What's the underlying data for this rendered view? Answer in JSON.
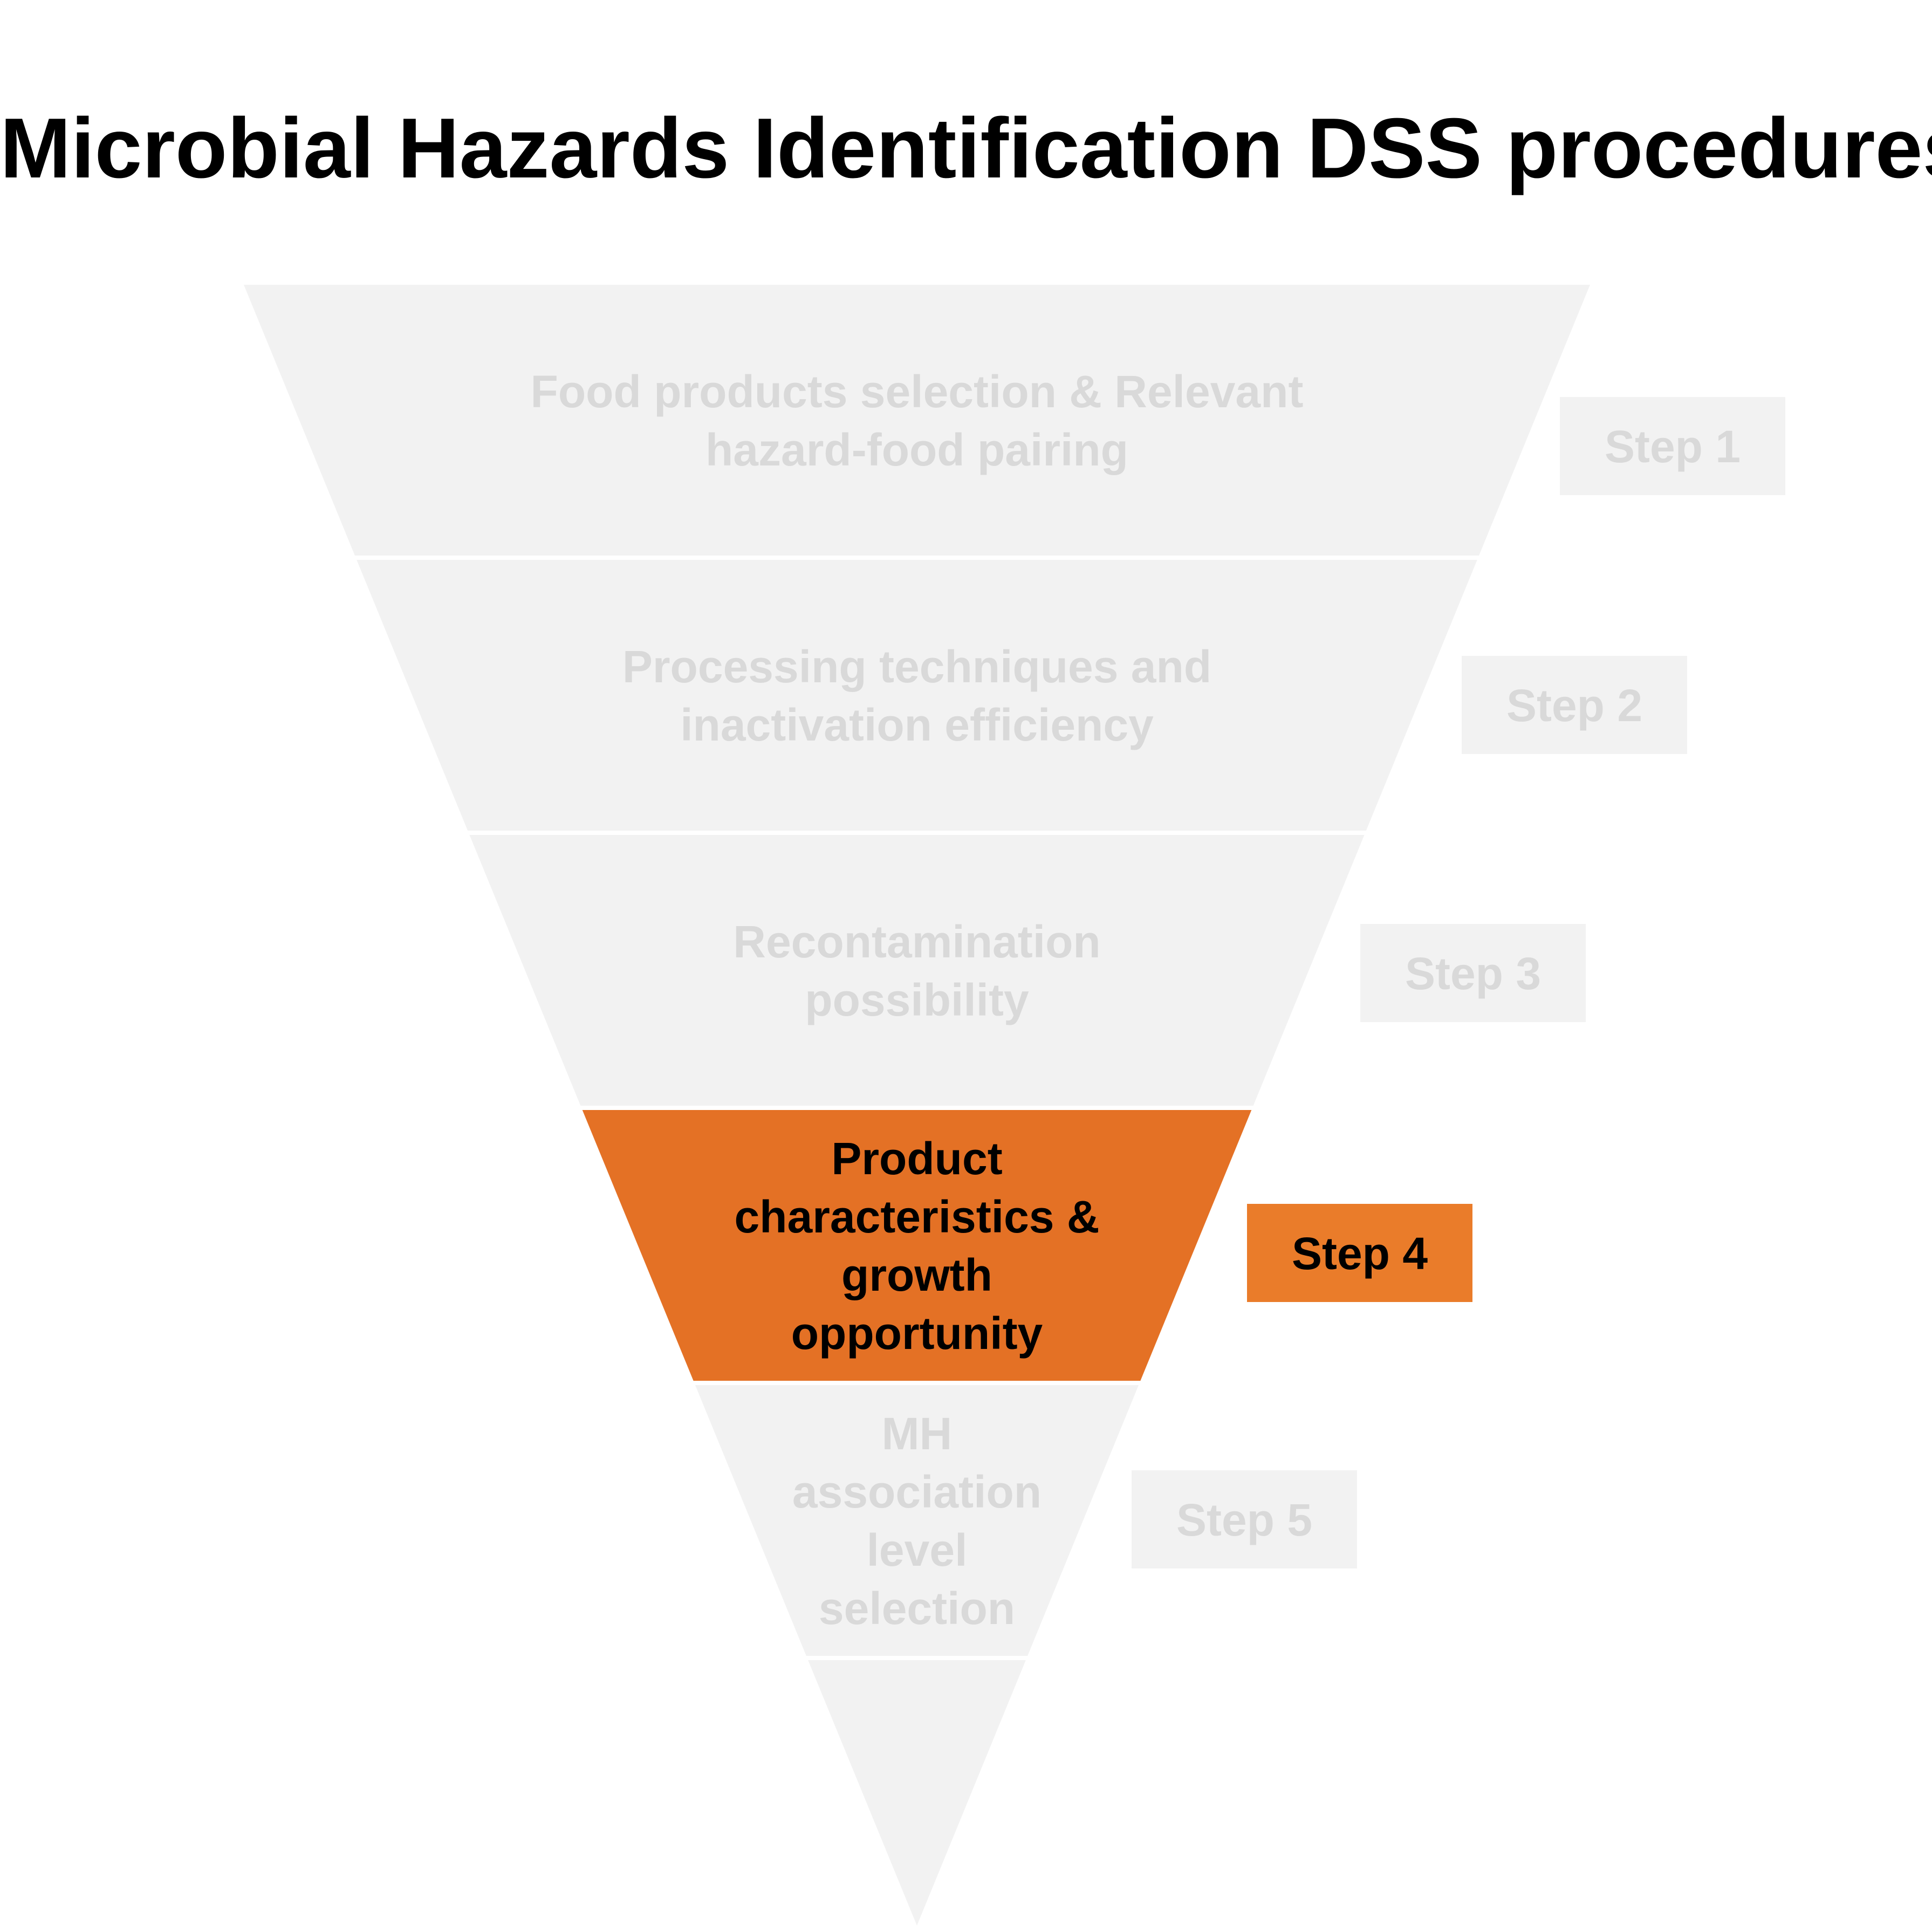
{
  "title": "Microbial Hazards Identification DSS procedures",
  "colors": {
    "inactive_fill": "#f2f2f2",
    "inactive_text": "#d9d9d9",
    "active_fill": "#e47125",
    "active_badge": "#ea7c2a",
    "active_text": "#000000",
    "separator": "#ffffff"
  },
  "steps": [
    {
      "id": "step1",
      "badge": "Step 1",
      "label_lines": [
        "Food products selection & Relevant",
        "hazard-food pairing"
      ],
      "active": false
    },
    {
      "id": "step2",
      "badge": "Step 2",
      "label_lines": [
        "Processing techniques and",
        "inactivation efficiency"
      ],
      "active": false
    },
    {
      "id": "step3",
      "badge": "Step 3",
      "label_lines": [
        "Recontamination",
        "possibility"
      ],
      "active": false
    },
    {
      "id": "step4",
      "badge": "Step 4",
      "label_lines": [
        "Product",
        "characteristics &",
        "growth",
        "opportunity"
      ],
      "active": true
    },
    {
      "id": "step5",
      "badge": "Step 5",
      "label_lines": [
        "MH",
        "association",
        "level",
        "selection"
      ],
      "active": false
    }
  ]
}
